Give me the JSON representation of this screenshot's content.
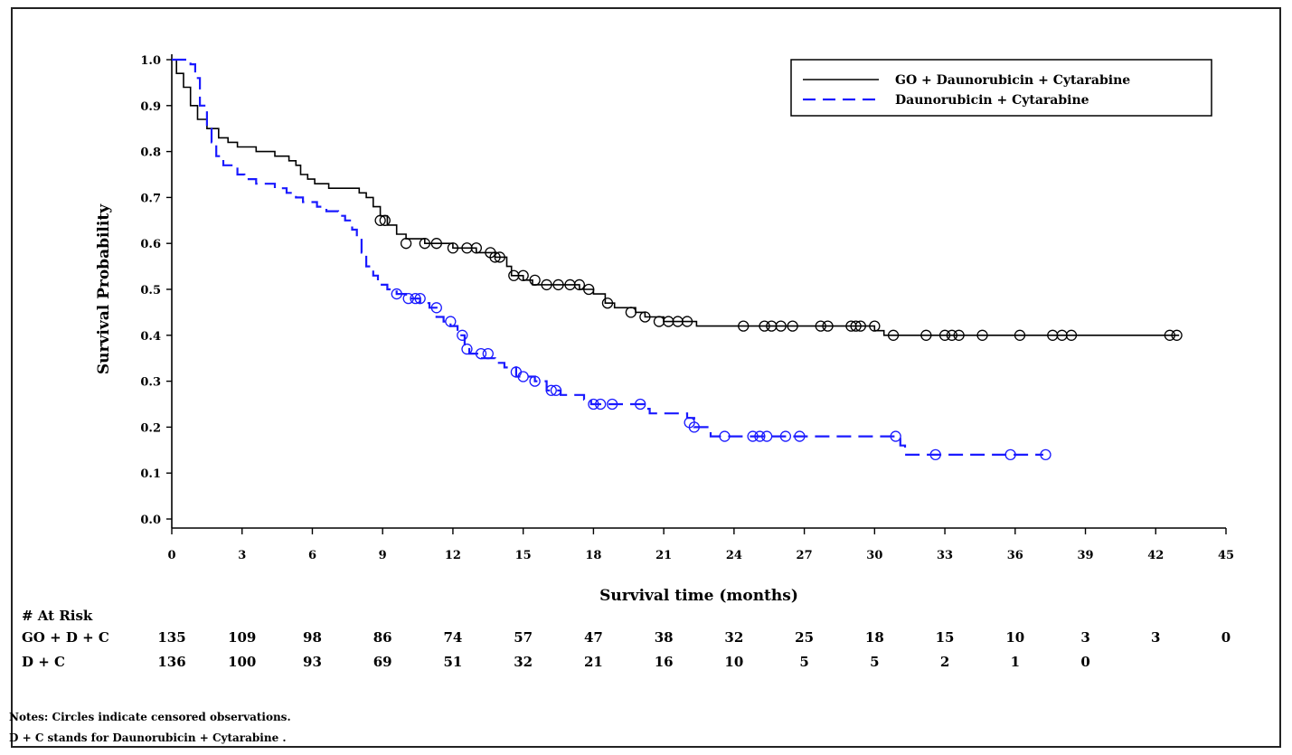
{
  "chart_data": {
    "type": "line",
    "subtype": "kaplan-meier",
    "xlabel": "Survival time (months)",
    "ylabel": "Survival Probability",
    "xlim": [
      0,
      45
    ],
    "ylim": [
      0,
      1.0
    ],
    "xticks": [
      "0",
      "3",
      "6",
      "9",
      "12",
      "15",
      "18",
      "21",
      "24",
      "27",
      "30",
      "33",
      "36",
      "39",
      "42",
      "45"
    ],
    "yticks": [
      "0.0",
      "0.1",
      "0.2",
      "0.3",
      "0.4",
      "0.5",
      "0.6",
      "0.7",
      "0.8",
      "0.9",
      "1.0"
    ],
    "grid": false,
    "legend_position": "top-right",
    "series": [
      {
        "name": "GO + Daunorubicin + Cytarabine",
        "color": "#000000",
        "style": "solid",
        "steps": [
          [
            0,
            1.0
          ],
          [
            0.2,
            0.97
          ],
          [
            0.5,
            0.94
          ],
          [
            0.8,
            0.9
          ],
          [
            1.1,
            0.87
          ],
          [
            1.5,
            0.85
          ],
          [
            2.0,
            0.83
          ],
          [
            2.4,
            0.82
          ],
          [
            2.8,
            0.81
          ],
          [
            3.6,
            0.8
          ],
          [
            4.4,
            0.79
          ],
          [
            5.0,
            0.78
          ],
          [
            5.3,
            0.77
          ],
          [
            5.5,
            0.75
          ],
          [
            5.8,
            0.74
          ],
          [
            6.1,
            0.73
          ],
          [
            6.7,
            0.72
          ],
          [
            8.0,
            0.71
          ],
          [
            8.3,
            0.7
          ],
          [
            8.6,
            0.68
          ],
          [
            8.9,
            0.66
          ],
          [
            9.2,
            0.64
          ],
          [
            9.6,
            0.62
          ],
          [
            10.0,
            0.61
          ],
          [
            10.8,
            0.6
          ],
          [
            12.0,
            0.59
          ],
          [
            13.0,
            0.58
          ],
          [
            13.8,
            0.57
          ],
          [
            14.3,
            0.55
          ],
          [
            14.5,
            0.53
          ],
          [
            15.0,
            0.52
          ],
          [
            15.4,
            0.51
          ],
          [
            17.4,
            0.5
          ],
          [
            18.0,
            0.49
          ],
          [
            18.5,
            0.47
          ],
          [
            18.9,
            0.46
          ],
          [
            19.8,
            0.45
          ],
          [
            20.2,
            0.44
          ],
          [
            21.0,
            0.43
          ],
          [
            22.4,
            0.42
          ],
          [
            30.0,
            0.41
          ],
          [
            30.4,
            0.4
          ],
          [
            43.0,
            0.4
          ]
        ],
        "censored": [
          [
            8.9,
            0.65
          ],
          [
            9.1,
            0.65
          ],
          [
            10.0,
            0.6
          ],
          [
            10.8,
            0.6
          ],
          [
            11.3,
            0.6
          ],
          [
            12.0,
            0.59
          ],
          [
            12.6,
            0.59
          ],
          [
            13.0,
            0.59
          ],
          [
            13.6,
            0.58
          ],
          [
            13.8,
            0.57
          ],
          [
            14.0,
            0.57
          ],
          [
            14.6,
            0.53
          ],
          [
            15.0,
            0.53
          ],
          [
            15.5,
            0.52
          ],
          [
            16.0,
            0.51
          ],
          [
            16.5,
            0.51
          ],
          [
            17.0,
            0.51
          ],
          [
            17.4,
            0.51
          ],
          [
            17.8,
            0.5
          ],
          [
            18.6,
            0.47
          ],
          [
            19.6,
            0.45
          ],
          [
            20.2,
            0.44
          ],
          [
            20.8,
            0.43
          ],
          [
            21.2,
            0.43
          ],
          [
            21.6,
            0.43
          ],
          [
            22.0,
            0.43
          ],
          [
            24.4,
            0.42
          ],
          [
            25.3,
            0.42
          ],
          [
            25.6,
            0.42
          ],
          [
            26.0,
            0.42
          ],
          [
            26.5,
            0.42
          ],
          [
            27.7,
            0.42
          ],
          [
            28.0,
            0.42
          ],
          [
            29.0,
            0.42
          ],
          [
            29.2,
            0.42
          ],
          [
            29.4,
            0.42
          ],
          [
            30.0,
            0.42
          ],
          [
            30.8,
            0.4
          ],
          [
            32.2,
            0.4
          ],
          [
            33.0,
            0.4
          ],
          [
            33.3,
            0.4
          ],
          [
            33.6,
            0.4
          ],
          [
            34.6,
            0.4
          ],
          [
            36.2,
            0.4
          ],
          [
            37.6,
            0.4
          ],
          [
            38.0,
            0.4
          ],
          [
            38.4,
            0.4
          ],
          [
            42.6,
            0.4
          ],
          [
            42.9,
            0.4
          ]
        ]
      },
      {
        "name": "Daunorubicin + Cytarabine",
        "color": "#1a1aff",
        "style": "dashed",
        "steps": [
          [
            0,
            1.0
          ],
          [
            0.8,
            0.99
          ],
          [
            1.0,
            0.96
          ],
          [
            1.2,
            0.9
          ],
          [
            1.5,
            0.85
          ],
          [
            1.7,
            0.82
          ],
          [
            1.9,
            0.79
          ],
          [
            2.2,
            0.77
          ],
          [
            2.8,
            0.75
          ],
          [
            3.1,
            0.74
          ],
          [
            3.6,
            0.73
          ],
          [
            4.4,
            0.72
          ],
          [
            4.9,
            0.71
          ],
          [
            5.3,
            0.7
          ],
          [
            5.6,
            0.69
          ],
          [
            6.2,
            0.68
          ],
          [
            6.6,
            0.67
          ],
          [
            7.1,
            0.66
          ],
          [
            7.4,
            0.65
          ],
          [
            7.7,
            0.63
          ],
          [
            7.9,
            0.61
          ],
          [
            8.1,
            0.58
          ],
          [
            8.3,
            0.55
          ],
          [
            8.6,
            0.53
          ],
          [
            8.8,
            0.51
          ],
          [
            9.2,
            0.5
          ],
          [
            9.6,
            0.49
          ],
          [
            10.0,
            0.48
          ],
          [
            10.6,
            0.47
          ],
          [
            11.0,
            0.46
          ],
          [
            11.3,
            0.44
          ],
          [
            11.6,
            0.43
          ],
          [
            11.9,
            0.42
          ],
          [
            12.2,
            0.4
          ],
          [
            12.5,
            0.38
          ],
          [
            12.7,
            0.36
          ],
          [
            13.2,
            0.35
          ],
          [
            13.8,
            0.34
          ],
          [
            14.2,
            0.33
          ],
          [
            14.7,
            0.31
          ],
          [
            15.5,
            0.3
          ],
          [
            16.0,
            0.28
          ],
          [
            16.6,
            0.27
          ],
          [
            17.6,
            0.26
          ],
          [
            17.9,
            0.25
          ],
          [
            20.2,
            0.24
          ],
          [
            20.4,
            0.23
          ],
          [
            22.0,
            0.22
          ],
          [
            22.3,
            0.2
          ],
          [
            23.0,
            0.18
          ],
          [
            31.1,
            0.16
          ],
          [
            31.3,
            0.14
          ],
          [
            37.2,
            0.14
          ]
        ],
        "censored": [
          [
            9.6,
            0.49
          ],
          [
            10.1,
            0.48
          ],
          [
            10.4,
            0.48
          ],
          [
            10.6,
            0.48
          ],
          [
            11.3,
            0.46
          ],
          [
            11.9,
            0.43
          ],
          [
            12.4,
            0.4
          ],
          [
            12.6,
            0.37
          ],
          [
            13.2,
            0.36
          ],
          [
            13.5,
            0.36
          ],
          [
            14.7,
            0.32
          ],
          [
            15.0,
            0.31
          ],
          [
            15.5,
            0.3
          ],
          [
            16.2,
            0.28
          ],
          [
            16.4,
            0.28
          ],
          [
            18.0,
            0.25
          ],
          [
            18.3,
            0.25
          ],
          [
            18.8,
            0.25
          ],
          [
            20.0,
            0.25
          ],
          [
            22.1,
            0.21
          ],
          [
            22.3,
            0.2
          ],
          [
            23.6,
            0.18
          ],
          [
            24.8,
            0.18
          ],
          [
            25.1,
            0.18
          ],
          [
            25.4,
            0.18
          ],
          [
            26.2,
            0.18
          ],
          [
            26.8,
            0.18
          ],
          [
            30.9,
            0.18
          ],
          [
            32.6,
            0.14
          ],
          [
            35.8,
            0.14
          ],
          [
            37.3,
            0.14
          ]
        ]
      }
    ]
  },
  "at_risk": {
    "title": "# At Risk",
    "times": [
      "0",
      "3",
      "6",
      "9",
      "12",
      "15",
      "18",
      "21",
      "24",
      "27",
      "30",
      "33",
      "36",
      "39",
      "42",
      "45"
    ],
    "rows": [
      {
        "label": "GO + D + C",
        "values": [
          "135",
          "109",
          "98",
          "86",
          "74",
          "57",
          "47",
          "38",
          "32",
          "25",
          "18",
          "15",
          "10",
          "3",
          "3",
          "0"
        ]
      },
      {
        "label": "D + C",
        "values": [
          "136",
          "100",
          "93",
          "69",
          "51",
          "32",
          "21",
          "16",
          "10",
          "5",
          "5",
          "2",
          "1",
          "0"
        ]
      }
    ]
  },
  "notes": [
    "Notes: Circles indicate censored observations.",
    "D + C stands for Daunorubicin + Cytarabine ."
  ]
}
